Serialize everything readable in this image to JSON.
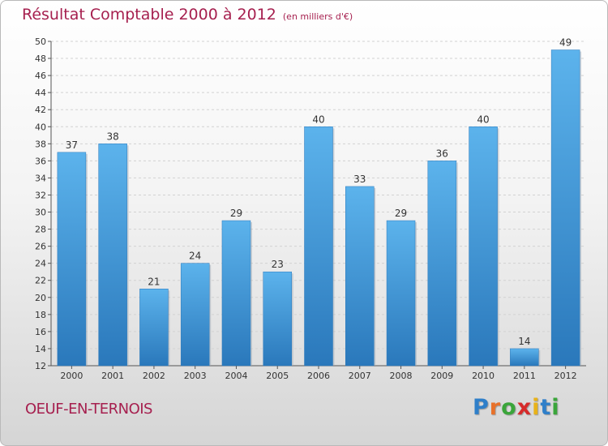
{
  "header": {
    "title": "Résultat Comptable 2000 à 2012",
    "unit": "(en milliers d'€)"
  },
  "footer": {
    "town": "OEUF-EN-TERNOIS",
    "logo": [
      "P",
      "r",
      "o",
      "x",
      "i",
      "t",
      "i"
    ],
    "logo_colors": [
      "#2f7fc9",
      "#e8712a",
      "#3aa53a",
      "#d62a2a",
      "#e8b21a",
      "#2f7fc9",
      "#3aa53a"
    ]
  },
  "chart_data": {
    "type": "bar",
    "categories": [
      "2000",
      "2001",
      "2002",
      "2003",
      "2004",
      "2005",
      "2006",
      "2007",
      "2008",
      "2009",
      "2010",
      "2011",
      "2012"
    ],
    "values": [
      37,
      38,
      21,
      24,
      29,
      23,
      40,
      33,
      29,
      36,
      40,
      14,
      49
    ],
    "ylim": [
      12,
      50
    ],
    "yticks": [
      12,
      14,
      16,
      18,
      20,
      22,
      24,
      26,
      28,
      30,
      32,
      34,
      36,
      38,
      40,
      42,
      44,
      46,
      48,
      50
    ],
    "grid": true,
    "bar_color": "#3f97d9",
    "bar_color_light": "#5cb3ec",
    "bar_color_dark": "#2a78bb",
    "title": "Résultat Comptable 2000 à 2012",
    "xlabel": "",
    "ylabel": ""
  }
}
